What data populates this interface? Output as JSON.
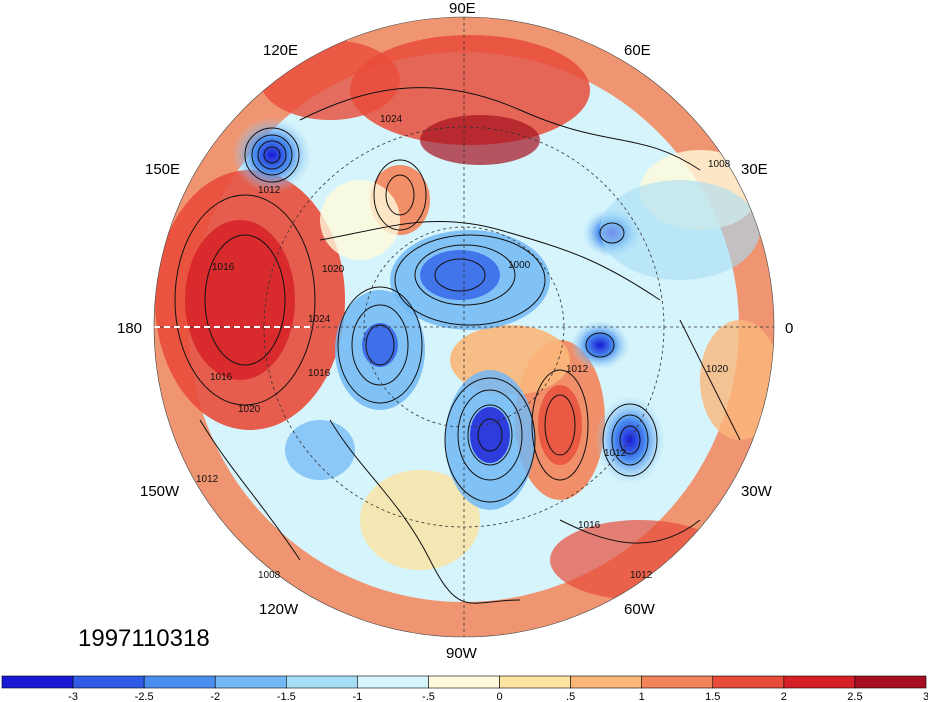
{
  "map": {
    "timestamp": "1997110318",
    "longitude_labels": [
      "90E",
      "60E",
      "30E",
      "0",
      "30W",
      "60W",
      "90W",
      "120W",
      "150W",
      "180",
      "150E",
      "120E"
    ],
    "isobar_labels": [
      "1024",
      "1012",
      "1008",
      "1016",
      "1020",
      "1024",
      "1000",
      "1012",
      "1020",
      "1016",
      "1016",
      "1012",
      "1016",
      "1012",
      "1012",
      "1020",
      "1008"
    ]
  },
  "colorbar": {
    "tick_labels": [
      "-3",
      "-2.5",
      "-2",
      "-1.5",
      "-1",
      "-.5",
      "0",
      ".5",
      "1",
      "1.5",
      "2",
      "2.5",
      "3"
    ],
    "colors": [
      "#1a1ad6",
      "#2f5be6",
      "#4a8ff0",
      "#72b8f5",
      "#a6def7",
      "#d6f4fb",
      "#fffadb",
      "#fde3a2",
      "#fbb77a",
      "#f38459",
      "#e84b3a",
      "#d61f26",
      "#a50f20"
    ]
  }
}
